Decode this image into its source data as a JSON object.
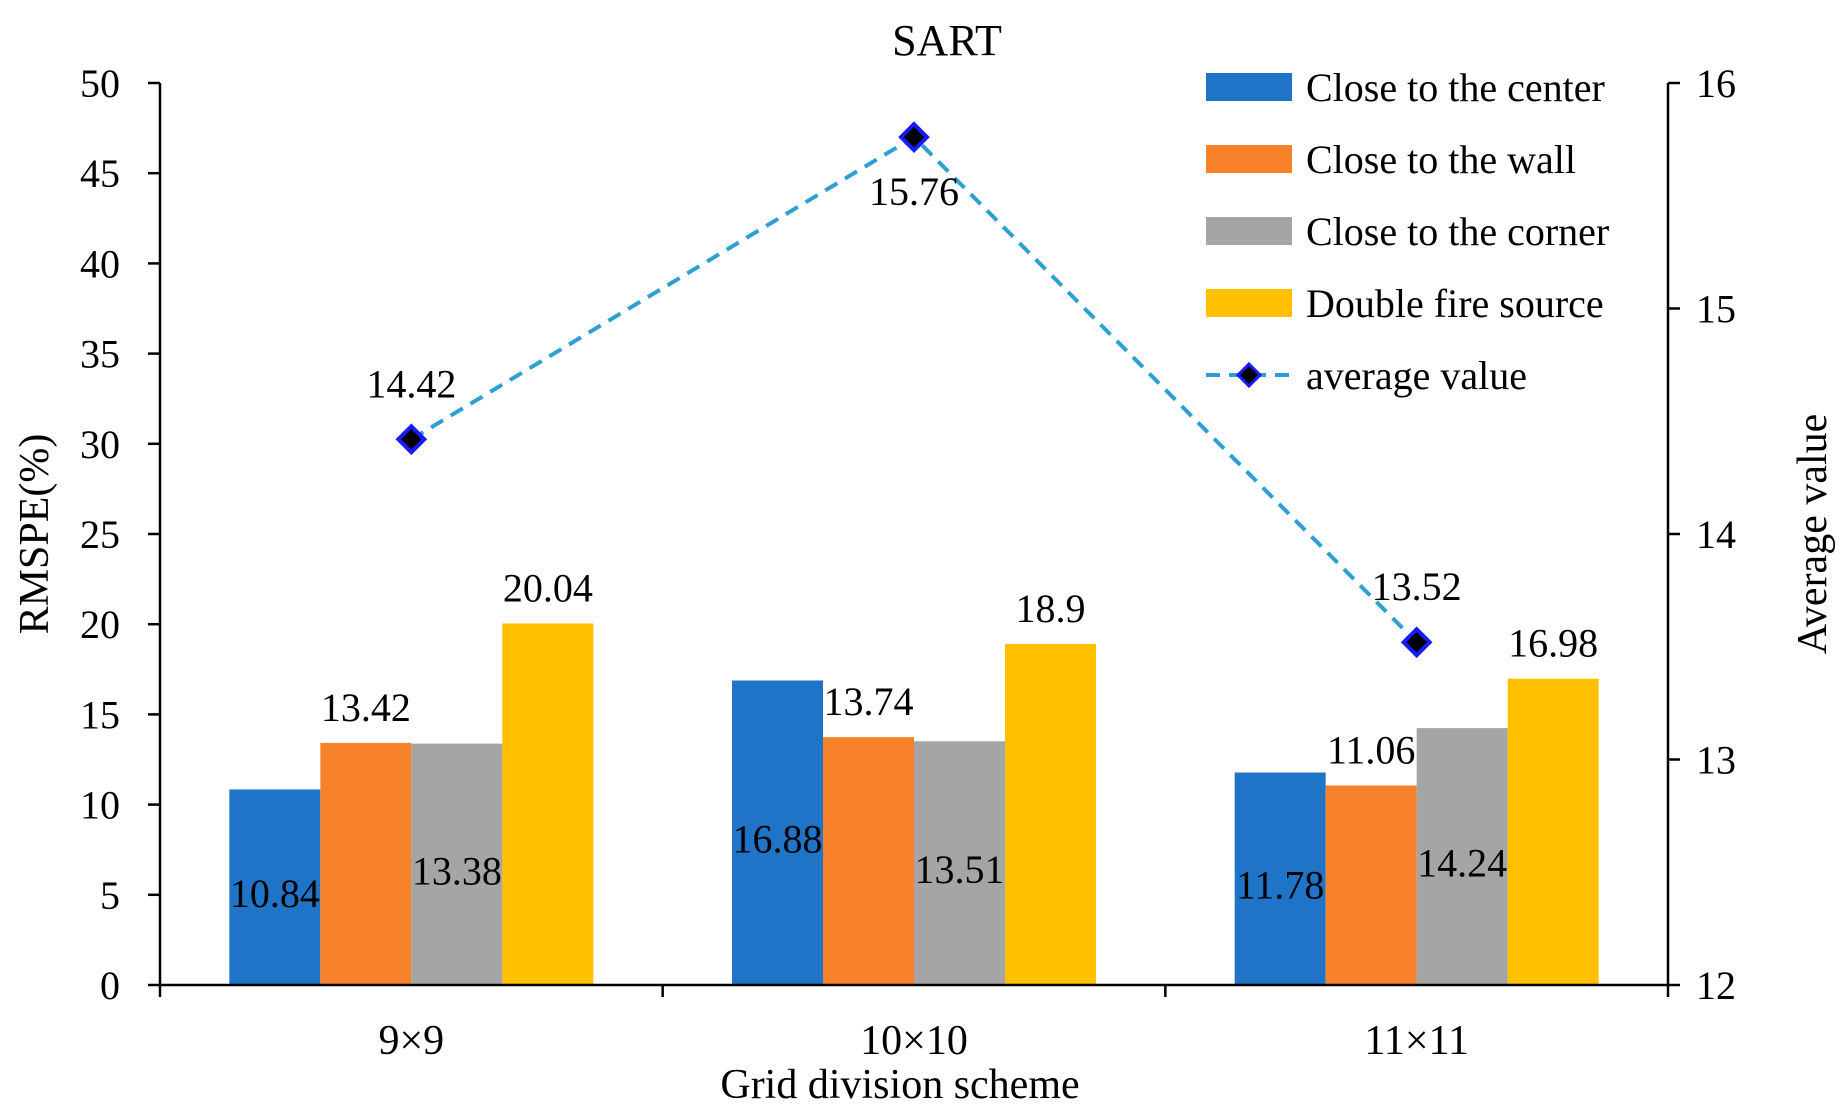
{
  "chart_data": {
    "type": "bar",
    "title": "SART",
    "xlabel": "Grid division scheme",
    "ylabel": "RMSPE(%)",
    "y2label": "Average value",
    "categories": [
      "9×9",
      "10×10",
      "11×11"
    ],
    "ylim": [
      0,
      50
    ],
    "yticks": [
      "0",
      "5",
      "10",
      "15",
      "20",
      "25",
      "30",
      "35",
      "40",
      "45",
      "50"
    ],
    "y2lim": [
      12,
      16
    ],
    "y2ticks": [
      "12",
      "13",
      "14",
      "15",
      "16"
    ],
    "series": [
      {
        "name": "Close to the center",
        "color": "#1f74c8",
        "values": [
          10.84,
          16.88,
          11.78
        ],
        "labels": [
          "10.84",
          "16.88",
          "11.78"
        ]
      },
      {
        "name": "Close to the wall",
        "color": "#f8812c",
        "values": [
          13.42,
          13.74,
          11.06
        ],
        "labels": [
          "13.42",
          "13.74",
          "11.06"
        ]
      },
      {
        "name": "Close to the corner",
        "color": "#a5a5a5",
        "values": [
          13.38,
          13.51,
          14.24
        ],
        "labels": [
          "13.38",
          "13.51",
          "14.24"
        ]
      },
      {
        "name": "Double fire source",
        "color": "#ffc000",
        "values": [
          20.04,
          18.9,
          16.98
        ],
        "labels": [
          "20.04",
          "18.9",
          "16.98"
        ]
      }
    ],
    "line_series": {
      "name": "average value",
      "axis": "secondary",
      "color": "#2e9fd4",
      "marker_color": "#000000",
      "marker_edge": "#1a1aff",
      "values": [
        14.42,
        15.76,
        13.52
      ],
      "labels": [
        "14.42",
        "15.76",
        "13.52"
      ]
    },
    "legend_position": "top-right",
    "grid": false
  }
}
